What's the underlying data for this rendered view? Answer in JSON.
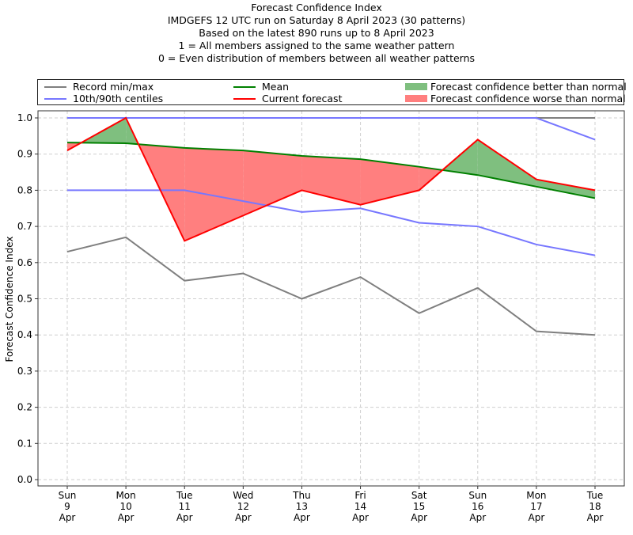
{
  "chart_data": {
    "type": "line",
    "title": "Forecast Confidence Index",
    "subtitle_lines": [
      "IMDGEFS 12 UTC run on Saturday 8 April 2023 (30 patterns)",
      "Based on the latest 890 runs up to 8 April 2023",
      "1 = All members assigned to the same weather pattern",
      "0 = Even distribution of members between all weather patterns"
    ],
    "xlabel": "",
    "ylabel": "Forecast Confidence Index",
    "ylim": [
      0,
      1.0
    ],
    "yticks": [
      "0.0",
      "0.1",
      "0.2",
      "0.3",
      "0.4",
      "0.5",
      "0.6",
      "0.7",
      "0.8",
      "0.9",
      "1.0"
    ],
    "ytick_values": [
      0,
      0.1,
      0.2,
      0.3,
      0.4,
      0.5,
      0.6,
      0.7,
      0.8,
      0.9,
      1.0
    ],
    "categories": [
      [
        "Sun",
        "9",
        "Apr"
      ],
      [
        "Mon",
        "10",
        "Apr"
      ],
      [
        "Tue",
        "11",
        "Apr"
      ],
      [
        "Wed",
        "12",
        "Apr"
      ],
      [
        "Thu",
        "13",
        "Apr"
      ],
      [
        "Fri",
        "14",
        "Apr"
      ],
      [
        "Sat",
        "15",
        "Apr"
      ],
      [
        "Sun",
        "16",
        "Apr"
      ],
      [
        "Mon",
        "17",
        "Apr"
      ],
      [
        "Tue",
        "18",
        "Apr"
      ]
    ],
    "grid": true,
    "legend_placement": "top (above plot, 3 columns)",
    "series": [
      {
        "name": "Record max",
        "legend": "Record min/max",
        "color": "#7f7f7f",
        "values": [
          1.0,
          1.0,
          1.0,
          1.0,
          1.0,
          1.0,
          1.0,
          1.0,
          1.0,
          1.0
        ]
      },
      {
        "name": "Record min",
        "legend": "Record min/max",
        "color": "#7f7f7f",
        "values": [
          0.63,
          0.67,
          0.55,
          0.57,
          0.5,
          0.56,
          0.46,
          0.53,
          0.41,
          0.4
        ]
      },
      {
        "name": "90th centile",
        "legend": "10th/90th centiles",
        "color": "#7777ff",
        "values": [
          1.0,
          1.0,
          1.0,
          1.0,
          1.0,
          1.0,
          1.0,
          1.0,
          1.0,
          0.94
        ]
      },
      {
        "name": "10th centile",
        "legend": "10th/90th centiles",
        "color": "#7777ff",
        "values": [
          0.8,
          0.8,
          0.8,
          0.77,
          0.74,
          0.75,
          0.71,
          0.7,
          0.65,
          0.62
        ]
      },
      {
        "name": "Mean",
        "legend": "Mean",
        "color": "#008000",
        "values": [
          0.932,
          0.93,
          0.917,
          0.91,
          0.895,
          0.886,
          0.865,
          0.842,
          0.81,
          0.778
        ]
      },
      {
        "name": "Current forecast",
        "legend": "Current forecast",
        "color": "#ff0000",
        "values": [
          0.91,
          1.0,
          0.66,
          0.73,
          0.8,
          0.76,
          0.8,
          0.94,
          0.83,
          0.8
        ]
      }
    ],
    "fills": [
      {
        "name": "Forecast confidence better than normal",
        "color": "#7fbf7f",
        "condition": "current > mean"
      },
      {
        "name": "Forecast confidence worse than normal",
        "color": "#ff7f7f",
        "condition": "current < mean"
      }
    ]
  },
  "legend": {
    "record": "Record min/max",
    "centiles": "10th/90th centiles",
    "mean": "Mean",
    "current": "Current forecast",
    "better": "Forecast confidence better than normal",
    "worse": "Forecast confidence worse than normal"
  }
}
